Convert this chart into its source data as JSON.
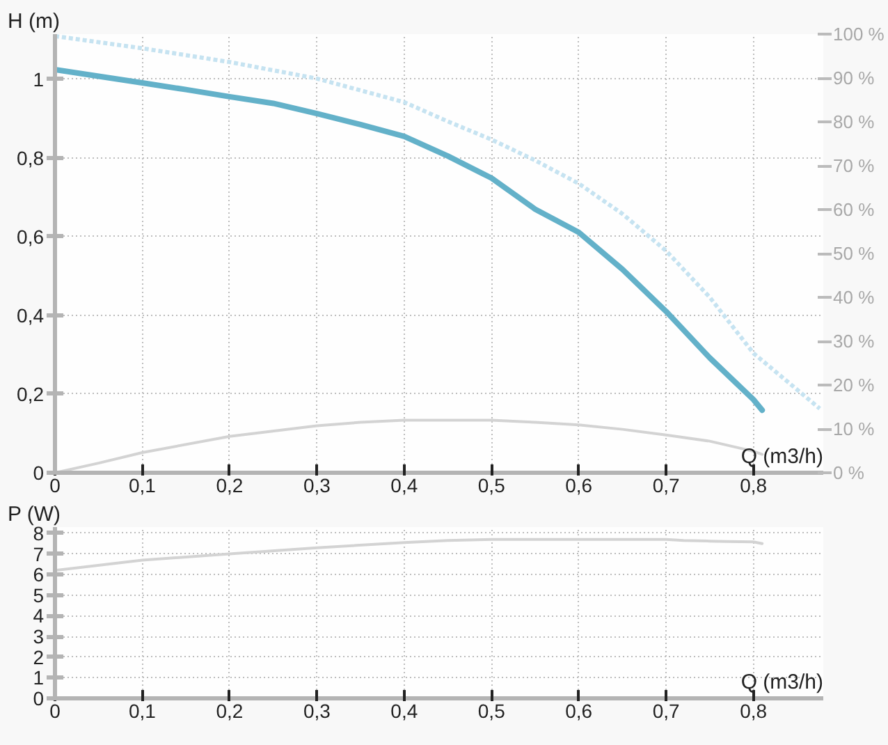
{
  "chart_data": [
    {
      "type": "line",
      "ylabel": "H (m)",
      "xlabel": "Q (m3/h)",
      "xlim": [
        0,
        0.88
      ],
      "xticks": [
        0,
        {
          "value": 0.1,
          "label": "0,1"
        },
        {
          "value": 0.2,
          "label": "0,2"
        },
        {
          "value": 0.3,
          "label": "0,3"
        },
        {
          "value": 0.4,
          "label": "0,4"
        },
        {
          "value": 0.5,
          "label": "0,5"
        },
        {
          "value": 0.6,
          "label": "0,6"
        },
        {
          "value": 0.7,
          "label": "0,7"
        },
        {
          "value": 0.8,
          "label": "0,8"
        }
      ],
      "ylim": [
        0,
        1.115
      ],
      "yticks": [
        0,
        {
          "value": 0.2,
          "label": "0,2"
        },
        {
          "value": 0.4,
          "label": "0,4"
        },
        {
          "value": 0.6,
          "label": "0,6"
        },
        {
          "value": 0.8,
          "label": "0,8"
        },
        1
      ],
      "y2lim": [
        0,
        100
      ],
      "y2ticks": [
        {
          "value": 0,
          "label": "0 %"
        },
        {
          "value": 10,
          "label": "10 %"
        },
        {
          "value": 20,
          "label": "20 %"
        },
        {
          "value": 30,
          "label": "30 %"
        },
        {
          "value": 40,
          "label": "40 %"
        },
        {
          "value": 50,
          "label": "50 %"
        },
        {
          "value": 60,
          "label": "60 %"
        },
        {
          "value": 70,
          "label": "70 %"
        },
        {
          "value": 80,
          "label": "80 %"
        },
        {
          "value": 90,
          "label": "90 %"
        },
        {
          "value": 100,
          "label": "100 %"
        }
      ],
      "grid": true,
      "series": [
        {
          "color": "#63b1c9",
          "line_style": "solid",
          "x": [
            0,
            0.05,
            0.1,
            0.15,
            0.2,
            0.25,
            0.3,
            0.35,
            0.4,
            0.45,
            0.5,
            0.55,
            0.6,
            0.65,
            0.7,
            0.75,
            0.8,
            0.81
          ],
          "values": [
            1.025,
            1.008,
            0.991,
            0.974,
            0.956,
            0.939,
            0.913,
            0.885,
            0.855,
            0.805,
            0.749,
            0.67,
            0.611,
            0.517,
            0.41,
            0.292,
            0.186,
            0.159
          ]
        },
        {
          "color": "#c6e3f1",
          "line_style": "dotted",
          "x": [
            0,
            0.1,
            0.2,
            0.3,
            0.4,
            0.45,
            0.5,
            0.55,
            0.6,
            0.65,
            0.7,
            0.75,
            0.8,
            0.876
          ],
          "values": [
            1.11,
            1.079,
            1.044,
            1.002,
            0.942,
            0.893,
            0.847,
            0.794,
            0.735,
            0.658,
            0.564,
            0.446,
            0.304,
            0.163
          ]
        },
        {
          "color": "#d3d3d3",
          "line_style": "solid",
          "axis": "y2",
          "x": [
            0,
            0.05,
            0.1,
            0.2,
            0.3,
            0.35,
            0.4,
            0.45,
            0.5,
            0.55,
            0.6,
            0.65,
            0.7,
            0.75,
            0.8,
            0.81
          ],
          "values": [
            0,
            2.2,
            4.6,
            8.3,
            10.7,
            11.5,
            12,
            12,
            12,
            11.5,
            10.9,
            9.9,
            8.6,
            7.2,
            4.9,
            4.2
          ]
        }
      ]
    },
    {
      "type": "line",
      "ylabel": "P (W)",
      "xlabel": "Q (m3/h)",
      "xlim": [
        0,
        0.88
      ],
      "xticks": [
        0,
        {
          "value": 0.1,
          "label": "0,1"
        },
        {
          "value": 0.2,
          "label": "0,2"
        },
        {
          "value": 0.3,
          "label": "0,3"
        },
        {
          "value": 0.4,
          "label": "0,4"
        },
        {
          "value": 0.5,
          "label": "0,5"
        },
        {
          "value": 0.6,
          "label": "0,6"
        },
        {
          "value": 0.7,
          "label": "0,7"
        },
        {
          "value": 0.8,
          "label": "0,8"
        }
      ],
      "ylim": [
        0,
        8.3
      ],
      "yticks": [
        0,
        1,
        2,
        3,
        4,
        5,
        6,
        7,
        8
      ],
      "grid": true,
      "series": [
        {
          "color": "#d3d3d3",
          "line_style": "solid",
          "x": [
            0,
            0.1,
            0.2,
            0.3,
            0.4,
            0.45,
            0.5,
            0.6,
            0.7,
            0.72,
            0.75,
            0.77,
            0.8,
            0.81
          ],
          "values": [
            6.2,
            6.7,
            7.0,
            7.3,
            7.55,
            7.65,
            7.7,
            7.7,
            7.7,
            7.65,
            7.62,
            7.6,
            7.58,
            7.5
          ]
        }
      ]
    }
  ]
}
